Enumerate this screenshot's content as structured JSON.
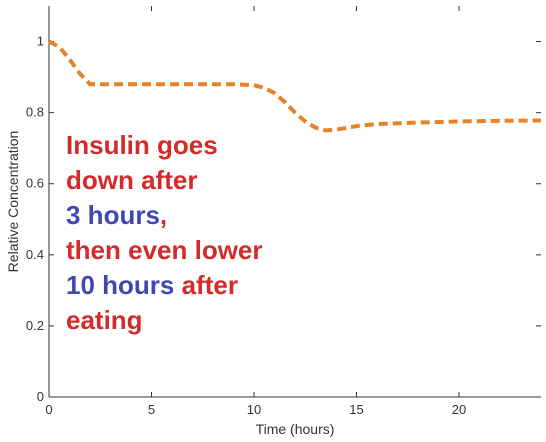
{
  "chart_data": {
    "type": "line",
    "title": "",
    "xlabel": "Time (hours)",
    "ylabel": "Relative Concentration",
    "xlim": [
      0,
      24
    ],
    "ylim": [
      0,
      1.1
    ],
    "x_ticks": [
      0,
      5,
      10,
      15,
      20
    ],
    "y_ticks": [
      0,
      0.2,
      0.4,
      0.6,
      0.8,
      1
    ],
    "y_tick_labels": [
      "0",
      "0.2",
      "0.4",
      "0.6",
      "0.8",
      "1"
    ],
    "grid": false,
    "series": [
      {
        "color": "#e8822a",
        "style": "dashed",
        "x": [
          0,
          0.5,
          1.0,
          1.5,
          2.0,
          3.0,
          5.0,
          7.0,
          9.0,
          10.0,
          10.5,
          11.0,
          11.5,
          12.0,
          12.5,
          13.0,
          13.5,
          14.0,
          15.0,
          16.0,
          18.0,
          20.0,
          22.0,
          24.0
        ],
        "y": [
          1.0,
          0.985,
          0.95,
          0.91,
          0.88,
          0.88,
          0.88,
          0.88,
          0.88,
          0.877,
          0.87,
          0.855,
          0.83,
          0.8,
          0.775,
          0.758,
          0.75,
          0.752,
          0.762,
          0.768,
          0.772,
          0.775,
          0.777,
          0.778
        ]
      }
    ],
    "annotation": {
      "colors": {
        "red": "#d42a2a",
        "blue": "#3f47b0"
      },
      "lines": [
        [
          {
            "text": "Insulin goes",
            "color": "red"
          }
        ],
        [
          {
            "text": "down after",
            "color": "red"
          }
        ],
        [
          {
            "text": "3 hours",
            "color": "blue"
          },
          {
            "text": ",",
            "color": "red"
          }
        ],
        [
          {
            "text": "then even lower",
            "color": "red"
          }
        ],
        [
          {
            "text": "10 hours",
            "color": "blue"
          },
          {
            "text": " after",
            "color": "red"
          }
        ],
        [
          {
            "text": "eating",
            "color": "red"
          }
        ]
      ]
    }
  }
}
